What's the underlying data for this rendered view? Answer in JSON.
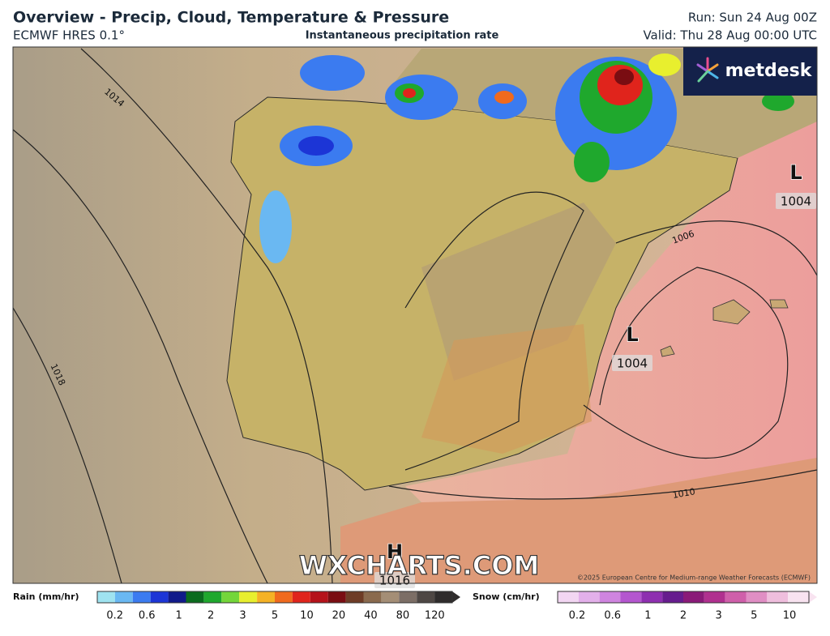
{
  "header": {
    "title": "Overview - Precip, Cloud, Temperature & Pressure",
    "model": "ECMWF HRES 0.1°",
    "subtitle": "Instantaneous precipitation rate",
    "run": "Run: Sun 24 Aug 00Z",
    "valid": "Valid: Thu 28 Aug 00:00 UTC"
  },
  "logo": "metdesk",
  "map": {
    "isobar_labels": [
      "1014",
      "1018",
      "1006",
      "1010"
    ],
    "pressure_centres": [
      {
        "kind": "L",
        "value": "1004"
      },
      {
        "kind": "L",
        "value": "1004"
      },
      {
        "kind": "H",
        "value": "1016"
      }
    ],
    "watermark": "WXCHARTS.COM",
    "copyright": "©2025 European Centre for Medium-range Weather Forecasts (ECMWF)"
  },
  "legend": {
    "rain": {
      "label": "Rain (mm/hr)",
      "ticks": [
        "0.2",
        "0.6",
        "1",
        "2",
        "3",
        "5",
        "10",
        "20",
        "40",
        "80",
        "120"
      ],
      "colors": [
        "#9fe3f0",
        "#6ab8f2",
        "#3b7bf0",
        "#1c35d6",
        "#101a8a",
        "#0b6b1e",
        "#1fa82d",
        "#74d63a",
        "#e8ef2e",
        "#f5b225",
        "#f06a1e",
        "#e0241c",
        "#b5121a",
        "#7a0d12",
        "#6e3c26",
        "#8a6a4e",
        "#a48e76",
        "#7c6e66",
        "#4e4744",
        "#2f2c2c"
      ]
    },
    "snow": {
      "label": "Snow (cm/hr)",
      "ticks": [
        "0.2",
        "0.6",
        "1",
        "2",
        "3",
        "5",
        "10"
      ],
      "colors": [
        "#f2d6f2",
        "#e3b0ea",
        "#cf84df",
        "#b456cf",
        "#8e2fb0",
        "#661c8e",
        "#8a1a78",
        "#b0308f",
        "#cf5faa",
        "#e08ec4",
        "#efbedd",
        "#f8e3f0"
      ]
    }
  }
}
